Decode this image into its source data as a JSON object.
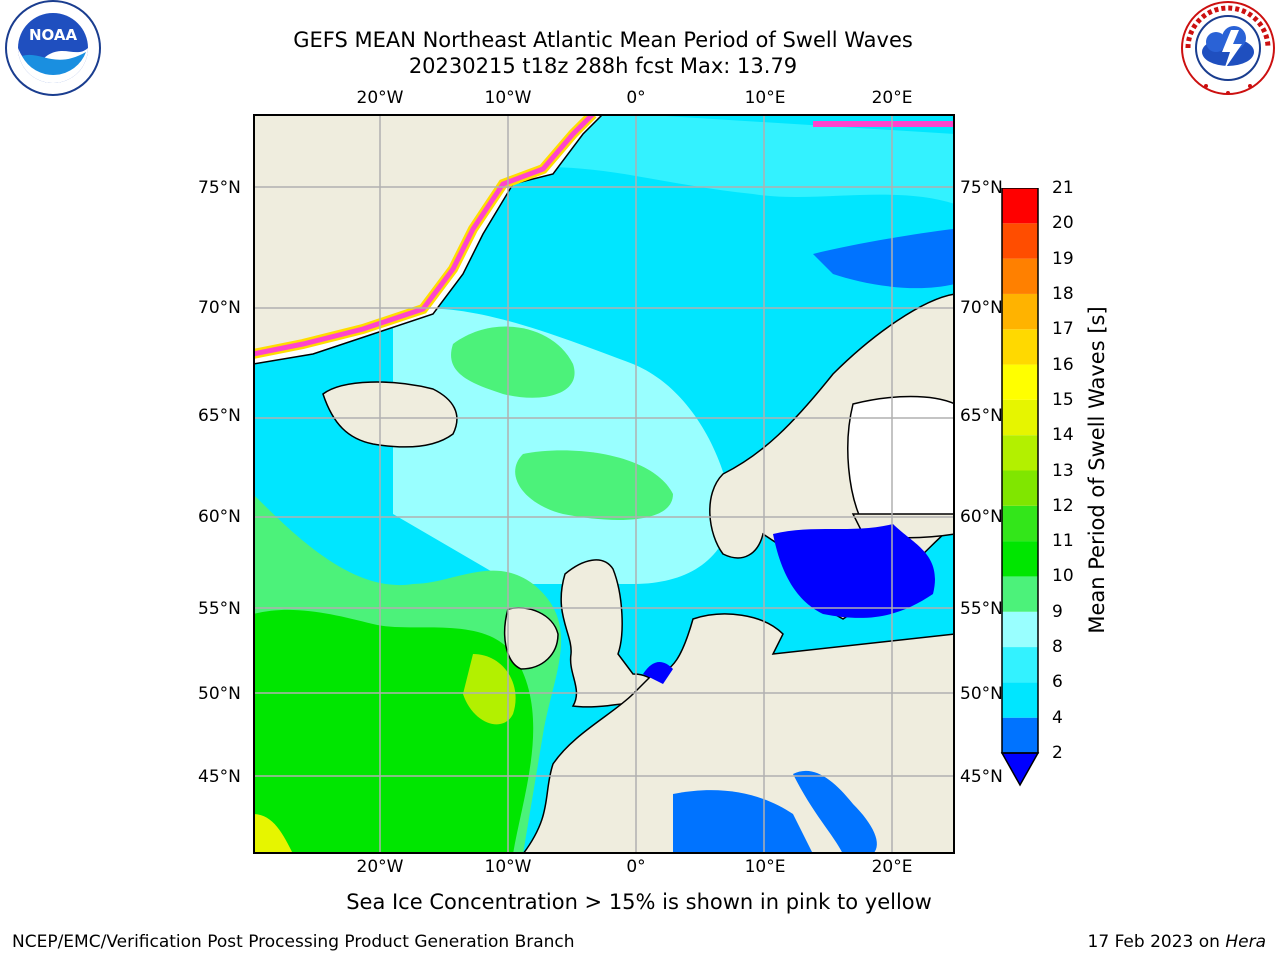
{
  "title_line1": "GEFS MEAN Northeast Atlantic Mean Period of Swell Waves",
  "title_line2": "20230215 t18z 288h fcst   Max: 13.79",
  "logos": {
    "noaa": {
      "text": "NOAA",
      "ring_text": "NATIONAL OCEANIC AND ATMOSPHERIC ADMINISTRATION · U.S. DEPARTMENT OF COMMERCE"
    },
    "nws": {
      "ring_text": "NATIONAL WEATHER SERVICE"
    }
  },
  "map": {
    "lon_labels": [
      "20°W",
      "10°W",
      "0°",
      "10°E",
      "20°E"
    ],
    "lat_labels": [
      "75°N",
      "70°N",
      "65°N",
      "60°N",
      "55°N",
      "50°N",
      "45°N"
    ],
    "colors": {
      "land": "#efedde",
      "grid": "#b0b0b0",
      "ice_edge": "#ff44cc",
      "ice_inner": "#ffdd00"
    }
  },
  "colorbar": {
    "label": "Mean Period of Swell Waves [s]",
    "ticks": [
      "2",
      "4",
      "6",
      "8",
      "9",
      "10",
      "11",
      "12",
      "13",
      "14",
      "15",
      "16",
      "17",
      "18",
      "19",
      "20",
      "21"
    ],
    "colors": [
      "#0000ff",
      "#0073ff",
      "#00e6ff",
      "#33f2ff",
      "#99ffff",
      "#4cf27a",
      "#00e600",
      "#33e61a",
      "#80e600",
      "#b3f000",
      "#e6f500",
      "#ffff00",
      "#ffd900",
      "#ffb300",
      "#ff8000",
      "#ff4d00",
      "#ff0000"
    ]
  },
  "ice_note": "Sea Ice Concentration > 15% is shown in pink to yellow",
  "footer": {
    "left": "NCEP/EMC/Verification Post Processing Product Generation Branch",
    "right_date": "17 Feb 2023 on",
    "right_host": "Hera"
  }
}
